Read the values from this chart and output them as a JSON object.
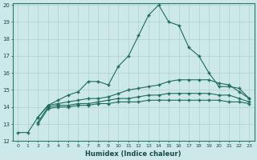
{
  "xlabel": "Humidex (Indice chaleur)",
  "xlim": [
    -0.5,
    23.5
  ],
  "ylim": [
    12,
    20.1
  ],
  "yticks": [
    12,
    13,
    14,
    15,
    16,
    17,
    18,
    19,
    20
  ],
  "xticks": [
    0,
    1,
    2,
    3,
    4,
    5,
    6,
    7,
    8,
    9,
    10,
    11,
    12,
    13,
    14,
    15,
    16,
    17,
    18,
    19,
    20,
    21,
    22,
    23
  ],
  "bg_color": "#cce8e8",
  "grid_color": "#b0d0d0",
  "line_color": "#1e6b5a",
  "line1_x": [
    0,
    1,
    2,
    3,
    4,
    5,
    6,
    7,
    8,
    9,
    10,
    11,
    12,
    13,
    14,
    15,
    16,
    17,
    18,
    19,
    20,
    21,
    22,
    23
  ],
  "line1_y": [
    12.5,
    12.5,
    13.4,
    14.1,
    14.4,
    14.7,
    14.9,
    15.5,
    15.5,
    15.3,
    16.4,
    17.0,
    18.2,
    19.4,
    20.0,
    19.0,
    18.8,
    17.5,
    17.0,
    16.0,
    15.2,
    15.2,
    15.1,
    14.5
  ],
  "line2_x": [
    2,
    3,
    4,
    5,
    6,
    7,
    8,
    9,
    10,
    11,
    12,
    13,
    14,
    15,
    16,
    17,
    18,
    19,
    20,
    21,
    22,
    23
  ],
  "line2_y": [
    13.4,
    14.1,
    14.2,
    14.3,
    14.4,
    14.5,
    14.5,
    14.6,
    14.8,
    15.0,
    15.1,
    15.2,
    15.3,
    15.5,
    15.6,
    15.6,
    15.6,
    15.6,
    15.4,
    15.3,
    14.9,
    14.5
  ],
  "line3_x": [
    2,
    3,
    4,
    5,
    6,
    7,
    8,
    9,
    10,
    11,
    12,
    13,
    14,
    15,
    16,
    17,
    18,
    19,
    20,
    21,
    22,
    23
  ],
  "line3_y": [
    13.1,
    14.0,
    14.1,
    14.1,
    14.2,
    14.2,
    14.3,
    14.4,
    14.5,
    14.5,
    14.6,
    14.7,
    14.7,
    14.8,
    14.8,
    14.8,
    14.8,
    14.8,
    14.7,
    14.7,
    14.5,
    14.3
  ],
  "line4_x": [
    2,
    3,
    4,
    5,
    6,
    7,
    8,
    9,
    10,
    11,
    12,
    13,
    14,
    15,
    16,
    17,
    18,
    19,
    20,
    21,
    22,
    23
  ],
  "line4_y": [
    13.0,
    13.9,
    14.0,
    14.0,
    14.1,
    14.1,
    14.2,
    14.2,
    14.3,
    14.3,
    14.3,
    14.4,
    14.4,
    14.4,
    14.4,
    14.4,
    14.4,
    14.4,
    14.4,
    14.3,
    14.3,
    14.2
  ]
}
